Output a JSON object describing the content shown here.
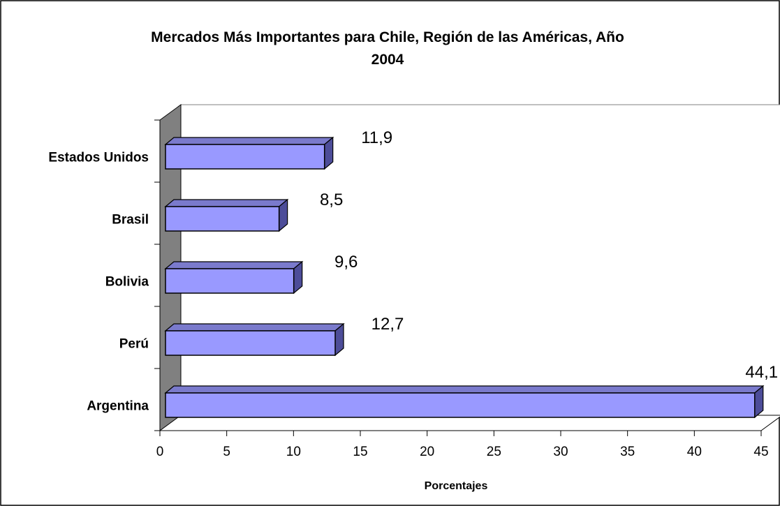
{
  "chart_data": {
    "type": "bar",
    "orientation": "horizontal",
    "title_line1": "Mercados Más Importantes para Chile, Región de las Américas, Año",
    "title_line2": "2004",
    "xlabel": "Porcentajes",
    "ylabel": "",
    "categories": [
      "Estados Unidos",
      "Brasil",
      "Bolivia",
      "Perú",
      "Argentina"
    ],
    "values": [
      11.9,
      8.5,
      9.6,
      12.7,
      44.1
    ],
    "value_labels": [
      "11,9",
      "8,5",
      "9,6",
      "12,7",
      "44,1"
    ],
    "xlim": [
      0,
      45
    ],
    "xticks": [
      "0",
      "5",
      "10",
      "15",
      "20",
      "25",
      "30",
      "35",
      "40",
      "45"
    ],
    "grid": false,
    "legend": "none",
    "style": "3d",
    "colors": {
      "bar_front": "#9999ff",
      "bar_top": "#7a7acc",
      "bar_side": "#4d4d99",
      "wall": "#808080",
      "floor": "#c0c0c0"
    }
  }
}
